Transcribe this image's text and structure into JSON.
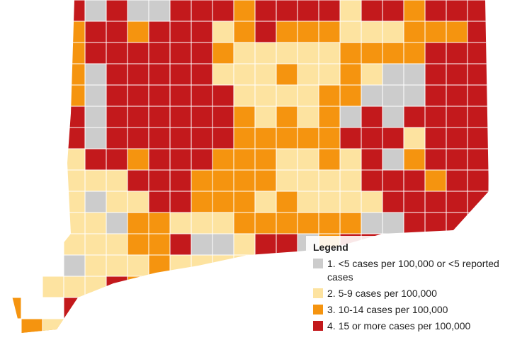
{
  "legend": {
    "title": "Legend",
    "items": [
      {
        "label": "1. <5 cases per 100,000 or <5 reported cases",
        "color": "#cccccc"
      },
      {
        "label": "2. 5-9 cases per 100,000",
        "color": "#fde3a0"
      },
      {
        "label": "3. 10-14 cases per 100,000",
        "color": "#f5940f"
      },
      {
        "label": "4. 15 or more cases per 100,000",
        "color": "#c3191c"
      }
    ]
  }
}
